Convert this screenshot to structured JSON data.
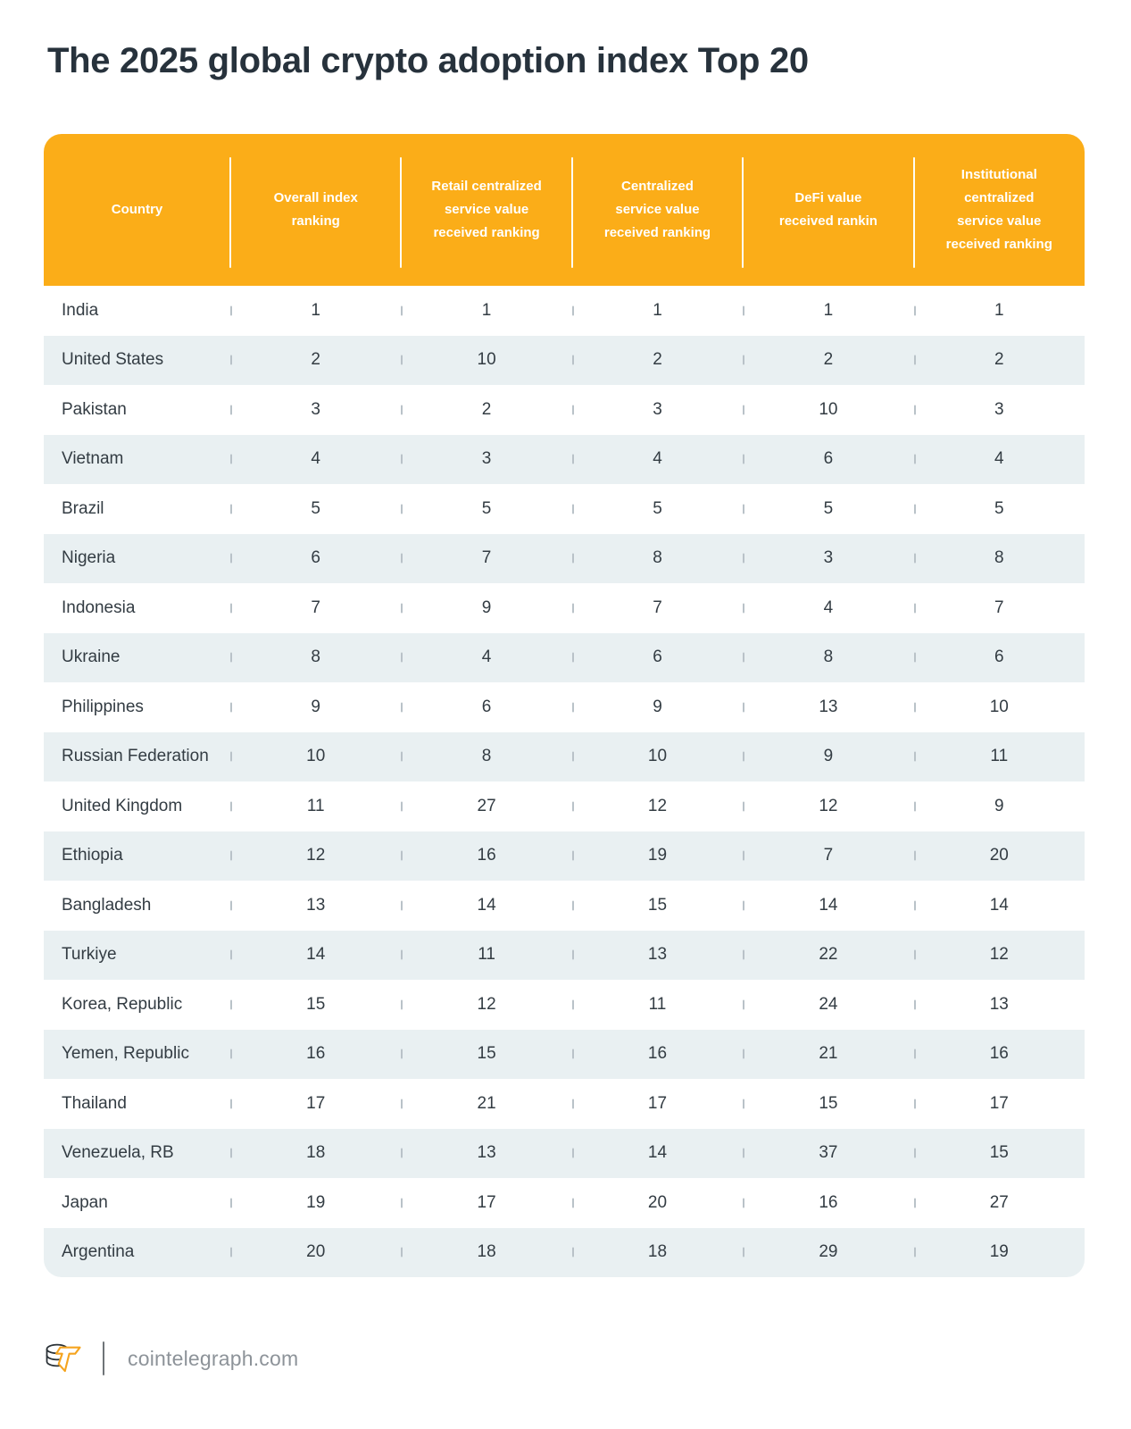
{
  "title": "The 2025 global crypto adoption index Top 20",
  "table": {
    "header": {
      "columns": [
        "Country",
        "Overall index ranking",
        "Retail centralized service value received ranking",
        "Centralized service value received ranking",
        "DeFi value received rankin",
        "Institutional centralized service value received ranking"
      ]
    },
    "rows": [
      {
        "country": "India",
        "values": [
          "1",
          "1",
          "1",
          "1",
          "1"
        ]
      },
      {
        "country": "United States",
        "values": [
          "2",
          "10",
          "2",
          "2",
          "2"
        ]
      },
      {
        "country": "Pakistan",
        "values": [
          "3",
          "2",
          "3",
          "10",
          "3"
        ]
      },
      {
        "country": "Vietnam",
        "values": [
          "4",
          "3",
          "4",
          "6",
          "4"
        ]
      },
      {
        "country": "Brazil",
        "values": [
          "5",
          "5",
          "5",
          "5",
          "5"
        ]
      },
      {
        "country": "Nigeria",
        "values": [
          "6",
          "7",
          "8",
          "3",
          "8"
        ]
      },
      {
        "country": "Indonesia",
        "values": [
          "7",
          "9",
          "7",
          "4",
          "7"
        ]
      },
      {
        "country": "Ukraine",
        "values": [
          "8",
          "4",
          "6",
          "8",
          "6"
        ]
      },
      {
        "country": "Philippines",
        "values": [
          "9",
          "6",
          "9",
          "13",
          "10"
        ]
      },
      {
        "country": "Russian Federation",
        "values": [
          "10",
          "8",
          "10",
          "9",
          "11"
        ]
      },
      {
        "country": "United Kingdom",
        "values": [
          "11",
          "27",
          "12",
          "12",
          "9"
        ]
      },
      {
        "country": "Ethiopia",
        "values": [
          "12",
          "16",
          "19",
          "7",
          "20"
        ]
      },
      {
        "country": "Bangladesh",
        "values": [
          "13",
          "14",
          "15",
          "14",
          "14"
        ]
      },
      {
        "country": "Turkiye",
        "values": [
          "14",
          "11",
          "13",
          "22",
          "12"
        ]
      },
      {
        "country": "Korea, Republic",
        "values": [
          "15",
          "12",
          "11",
          "24",
          "13"
        ]
      },
      {
        "country": "Yemen, Republic",
        "values": [
          "16",
          "15",
          "16",
          "21",
          "16"
        ]
      },
      {
        "country": "Thailand",
        "values": [
          "17",
          "21",
          "17",
          "15",
          "17"
        ]
      },
      {
        "country": "Venezuela, RB",
        "values": [
          "18",
          "13",
          "14",
          "37",
          "15"
        ]
      },
      {
        "country": "Japan",
        "values": [
          "19",
          "17",
          "20",
          "16",
          "27"
        ]
      },
      {
        "country": "Argentina",
        "values": [
          "20",
          "18",
          "18",
          "29",
          "19"
        ]
      }
    ]
  },
  "footer": {
    "site_label": "cointelegraph.com",
    "logo_name": "cointelegraph-logo"
  },
  "colors": {
    "header_bg": "#FBAD18",
    "row_alt_bg": "#E9F0F2",
    "title_color": "#27323C",
    "body_text": "#333C43",
    "tick_color": "#B9C2C8",
    "footer_text": "#8D9399",
    "footer_divider": "#6F7478",
    "logo_accent": "#F5A41F",
    "logo_ink": "#2A3136"
  }
}
